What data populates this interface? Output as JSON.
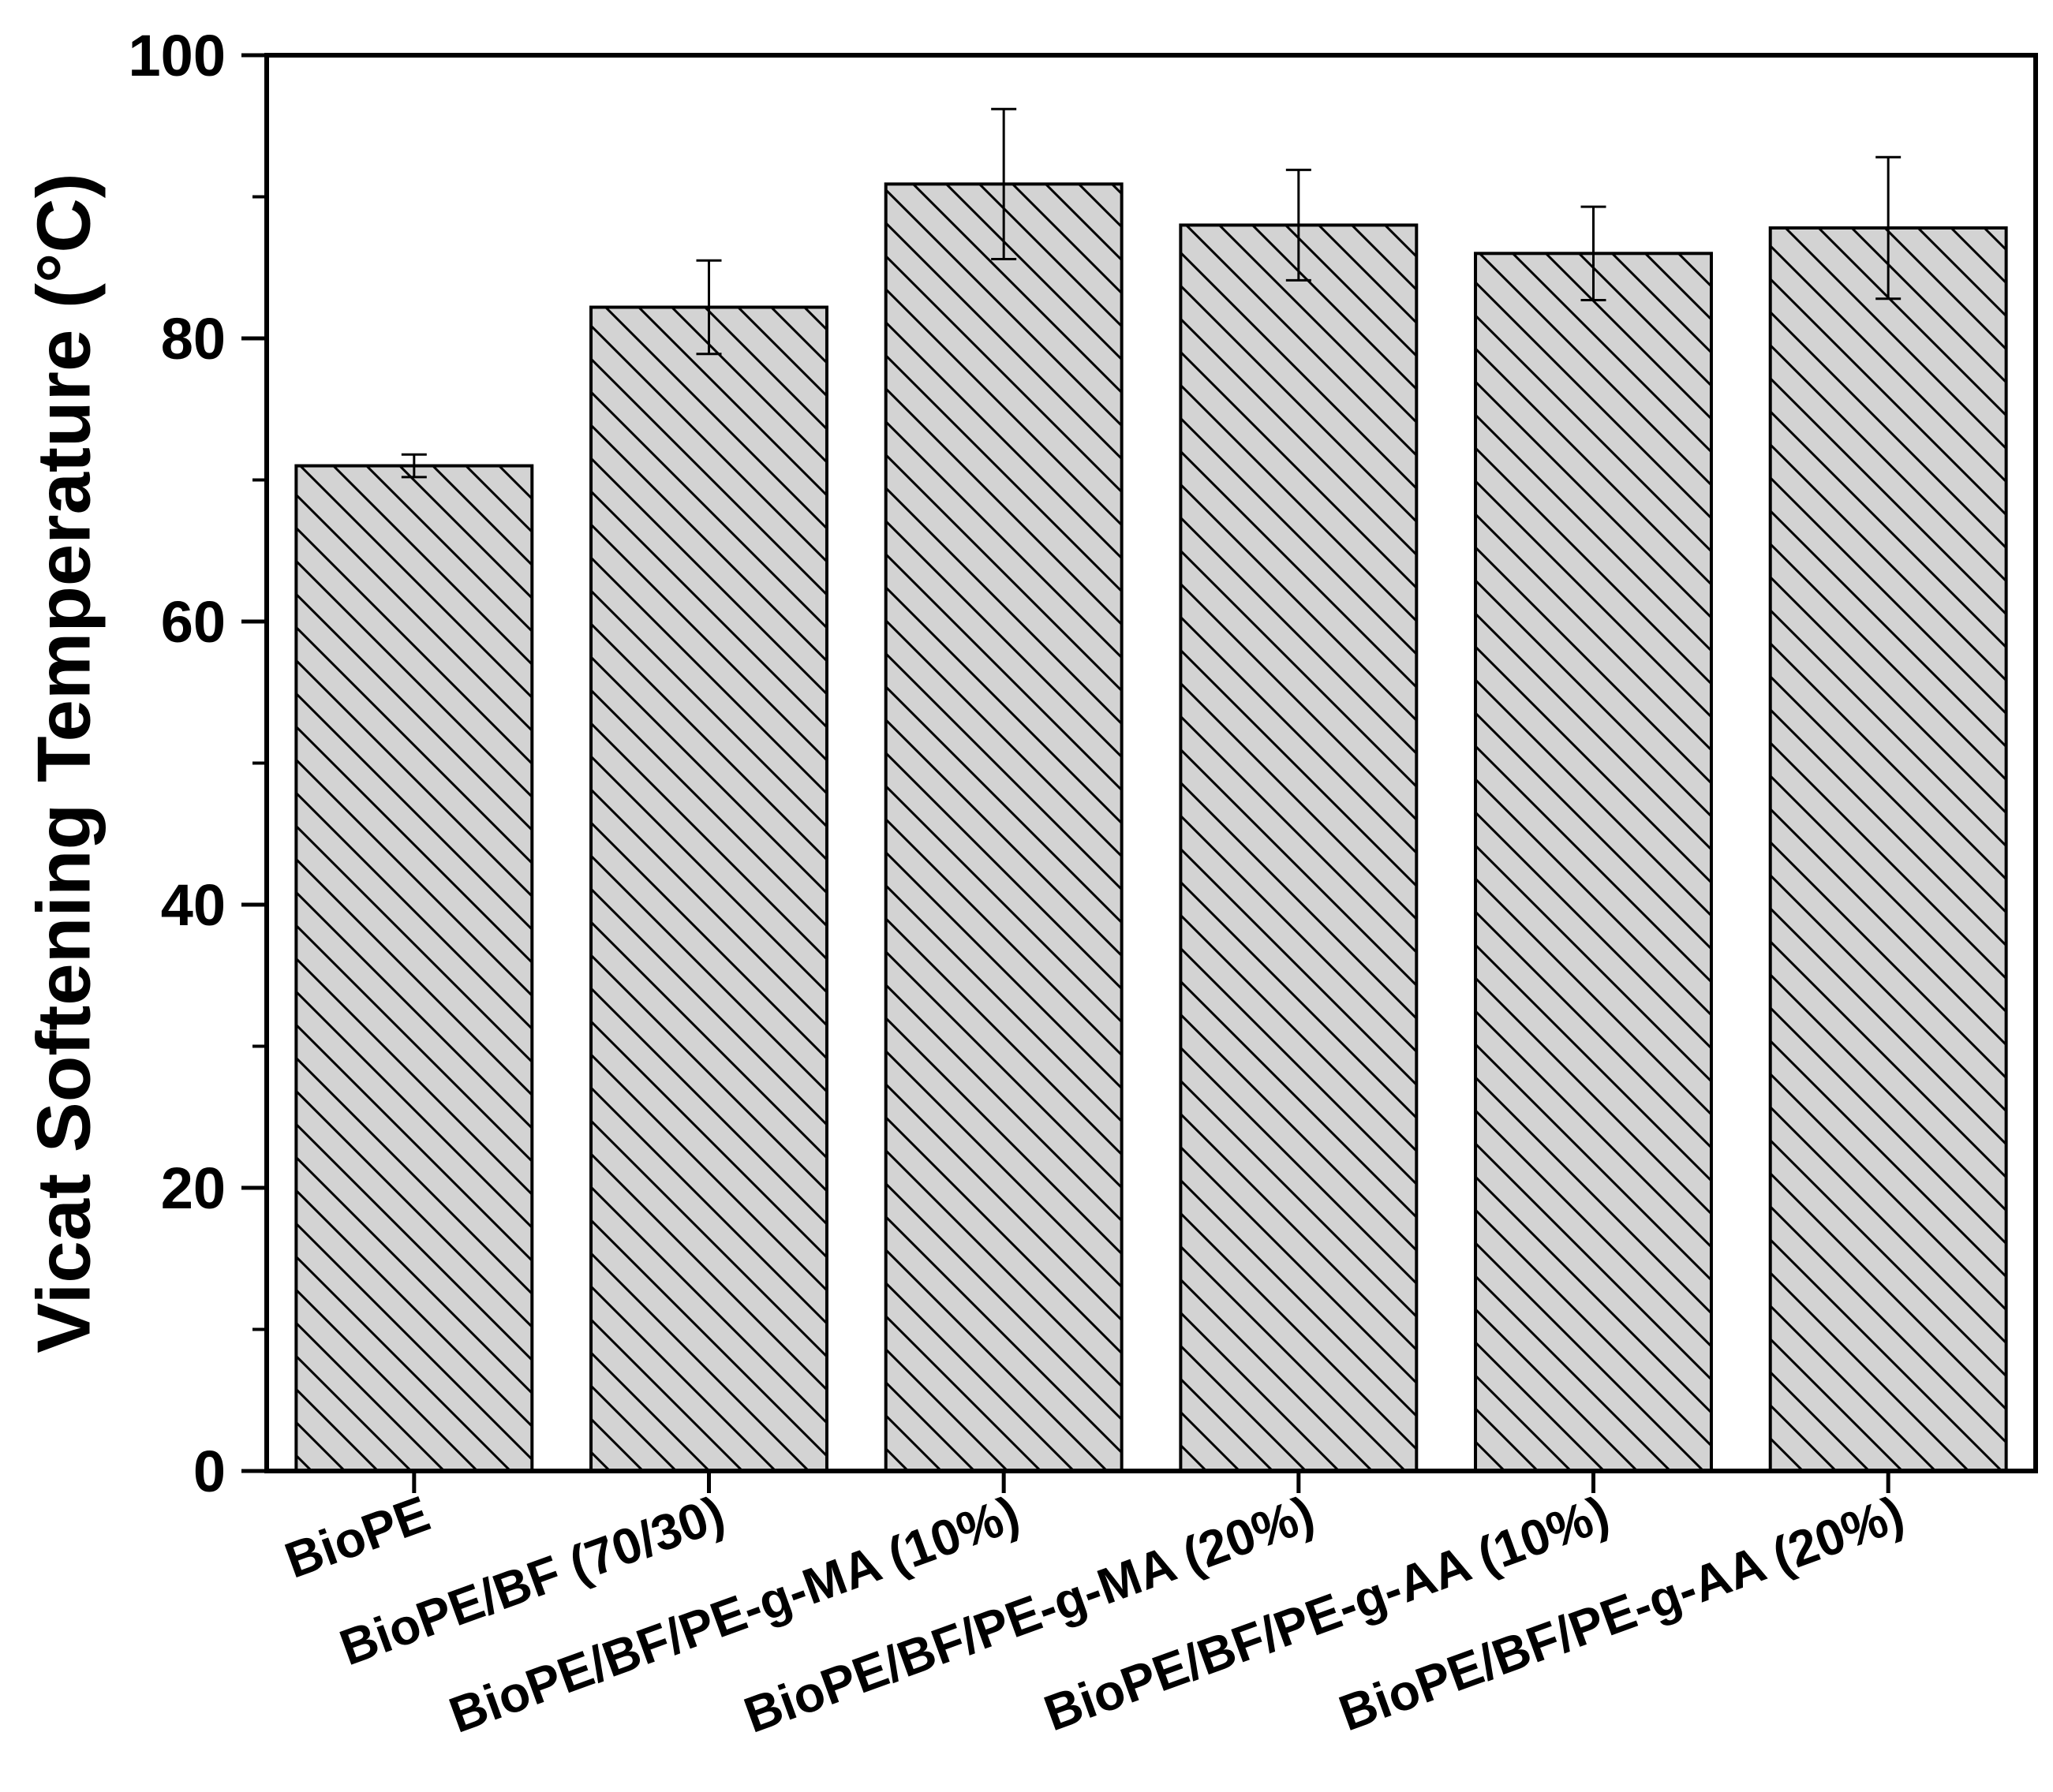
{
  "chart_data": {
    "type": "bar",
    "ylabel": "Vicat Softening Temperature (°C)",
    "xlabel": "",
    "ylim": [
      0,
      100
    ],
    "yticks": [
      0,
      20,
      40,
      60,
      80,
      100
    ],
    "y_minor_step": 10,
    "grid": false,
    "legend": "none",
    "categories": [
      "BioPE",
      "BioPE/BF (70/30)",
      "BioPE/BF/PE-g-MA (10%)",
      "BioPE/BF/PE-g-MA (20%)",
      "BioPE/BF/PE-g-AA (10%)",
      "BioPE/BF/PE-g-AA (20%)"
    ],
    "values": [
      71.0,
      82.2,
      90.9,
      88.0,
      86.0,
      87.8
    ],
    "errors": [
      0.8,
      3.3,
      5.3,
      3.9,
      3.3,
      5.0
    ],
    "bar_fill": "#d3d3d3",
    "hatch": "diagonal-backslash",
    "stroke": "#000000"
  }
}
